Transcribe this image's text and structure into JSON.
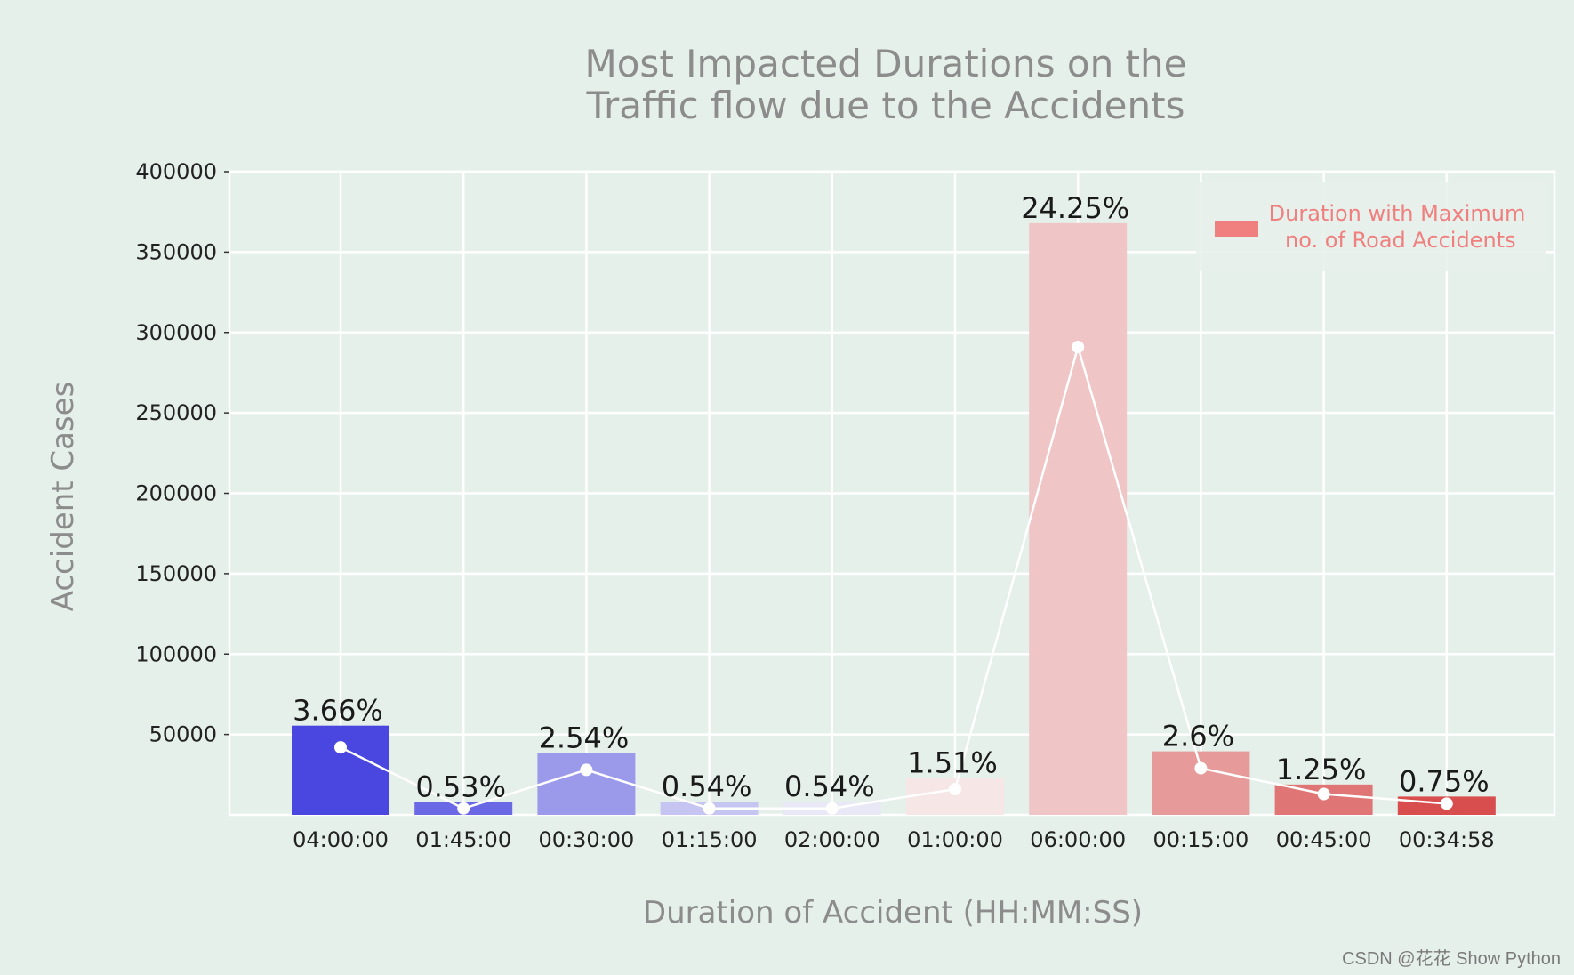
{
  "colors": {
    "background": "#e6f0ea",
    "grid": "#ffffff",
    "title": "#8c8c8c",
    "legend_patch": "#f08080",
    "legend_text": "#f07f7f",
    "line": "#ffffff",
    "bars": [
      "#4a46e0",
      "#6b68e5",
      "#9b99ea",
      "#c6c5f2",
      "#e8e8f6",
      "#f6e6e6",
      "#efc5c6",
      "#e69a9a",
      "#e07575",
      "#d84d4d"
    ]
  },
  "chart_data": {
    "type": "bar",
    "title": [
      "Most Impacted Durations on the",
      "Traffic flow due to the Accidents"
    ],
    "xlabel": "Duration of Accident (HH:MM:SS)",
    "ylabel": "Accident Cases",
    "ylim": [
      0,
      400000
    ],
    "yticks": [
      50000,
      100000,
      150000,
      200000,
      250000,
      300000,
      350000,
      400000
    ],
    "categories": [
      "04:00:00",
      "01:45:00",
      "00:30:00",
      "01:15:00",
      "02:00:00",
      "01:00:00",
      "06:00:00",
      "00:15:00",
      "00:45:00",
      "00:34:58"
    ],
    "values": [
      55500,
      8000,
      38500,
      8200,
      8200,
      23000,
      368000,
      39500,
      18900,
      11400
    ],
    "percent_labels": [
      "3.66%",
      "0.53%",
      "2.54%",
      "0.54%",
      "0.54%",
      "1.51%",
      "24.25%",
      "2.6%",
      "1.25%",
      "0.75%"
    ],
    "line_values": [
      42000,
      4000,
      28000,
      4000,
      4000,
      16000,
      291000,
      29000,
      13000,
      7000
    ],
    "legend": {
      "label": "Duration with Maximum\n no. of Road Accidents",
      "position": "top-right"
    },
    "grid": true
  },
  "watermark": "CSDN @花花 Show Python"
}
